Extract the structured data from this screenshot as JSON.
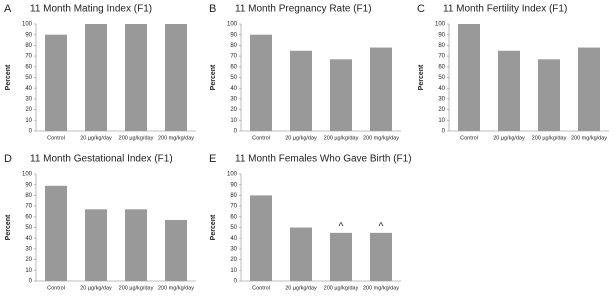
{
  "chart_data": [
    {
      "type": "bar",
      "panel": "A",
      "title": "11 Month Mating Index (F1)",
      "y_label": "Percent",
      "categories": [
        "Control",
        "20 µg/kg/day",
        "200 µg/kg/day",
        "200 mg/kg/day"
      ],
      "values": [
        90,
        100,
        100,
        100
      ],
      "color": "#999999",
      "ylim": [
        0,
        100
      ],
      "yticks": [
        0,
        10,
        20,
        30,
        40,
        50,
        60,
        70,
        80,
        90,
        100
      ]
    },
    {
      "type": "bar",
      "panel": "B",
      "title": "11 Month Pregnancy Rate (F1)",
      "y_label": "Percent",
      "categories": [
        "Control",
        "20 µg/kg/day",
        "200 µg/kg/day",
        "200 mg/kg/day"
      ],
      "values": [
        90,
        75,
        67,
        78
      ],
      "color": "#999999",
      "ylim": [
        0,
        100
      ],
      "yticks": [
        0,
        10,
        20,
        30,
        40,
        50,
        60,
        70,
        80,
        90,
        100
      ]
    },
    {
      "type": "bar",
      "panel": "C",
      "title": "11 Month Fertility Index (F1)",
      "y_label": "Percent",
      "categories": [
        "Control",
        "20 µg/kg/day",
        "200 µg/kg/day",
        "200 mg/kg/day"
      ],
      "values": [
        100,
        75,
        67,
        78
      ],
      "color": "#999999",
      "ylim": [
        0,
        100
      ],
      "yticks": [
        0,
        10,
        20,
        30,
        40,
        50,
        60,
        70,
        80,
        90,
        100
      ]
    },
    {
      "type": "bar",
      "panel": "D",
      "title": "11 Month Gestational Index (F1)",
      "y_label": "Percent",
      "categories": [
        "Control",
        "20 µg/kg/day",
        "200 µg/kg/day",
        "200 mg/kg/day"
      ],
      "values": [
        89,
        67,
        67,
        57
      ],
      "color": "#999999",
      "ylim": [
        0,
        100
      ],
      "yticks": [
        0,
        10,
        20,
        30,
        40,
        50,
        60,
        70,
        80,
        90,
        100
      ]
    },
    {
      "type": "bar",
      "panel": "E",
      "title": "11 Month Females Who Gave Birth (F1)",
      "y_label": "Percent",
      "categories": [
        "Control",
        "20 µg/kg/day",
        "200 µg/kg/day",
        "200 mg/kg/day"
      ],
      "values": [
        80,
        50,
        45,
        45
      ],
      "color": "#999999",
      "ylim": [
        0,
        100
      ],
      "yticks": [
        0,
        10,
        20,
        30,
        40,
        50,
        60,
        70,
        80,
        90,
        100
      ],
      "annotations": [
        {
          "text": "^",
          "x": "200 µg/kg/day"
        },
        {
          "text": "^",
          "x": "200 mg/kg/day"
        }
      ]
    }
  ]
}
